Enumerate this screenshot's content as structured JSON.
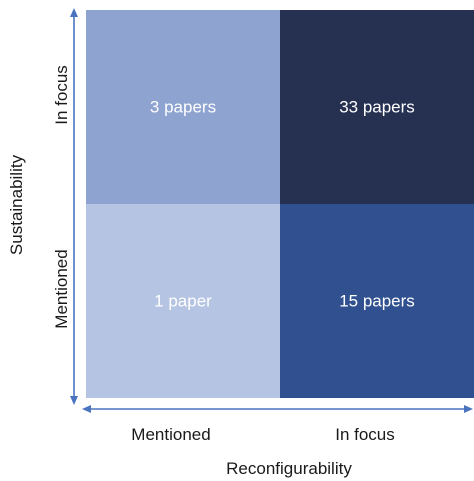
{
  "chart_data": {
    "type": "heatmap",
    "title": "",
    "xlabel": "Reconfigurability",
    "ylabel": "Sustainability",
    "x_categories": [
      "Mentioned",
      "In focus"
    ],
    "y_categories": [
      "Mentioned",
      "In focus"
    ],
    "cells": [
      {
        "x": "Mentioned",
        "y": "In focus",
        "value": 3,
        "label": "3 papers",
        "color": "#8fa3d1"
      },
      {
        "x": "In focus",
        "y": "In focus",
        "value": 33,
        "label": "33 papers",
        "color": "#263152"
      },
      {
        "x": "Mentioned",
        "y": "Mentioned",
        "value": 1,
        "label": "1 paper",
        "color": "#b5c4e2"
      },
      {
        "x": "In focus",
        "y": "Mentioned",
        "value": 15,
        "label": "15 papers",
        "color": "#30508f"
      }
    ],
    "legend": "none",
    "grid": false,
    "axis_color": "#4a74c0"
  }
}
